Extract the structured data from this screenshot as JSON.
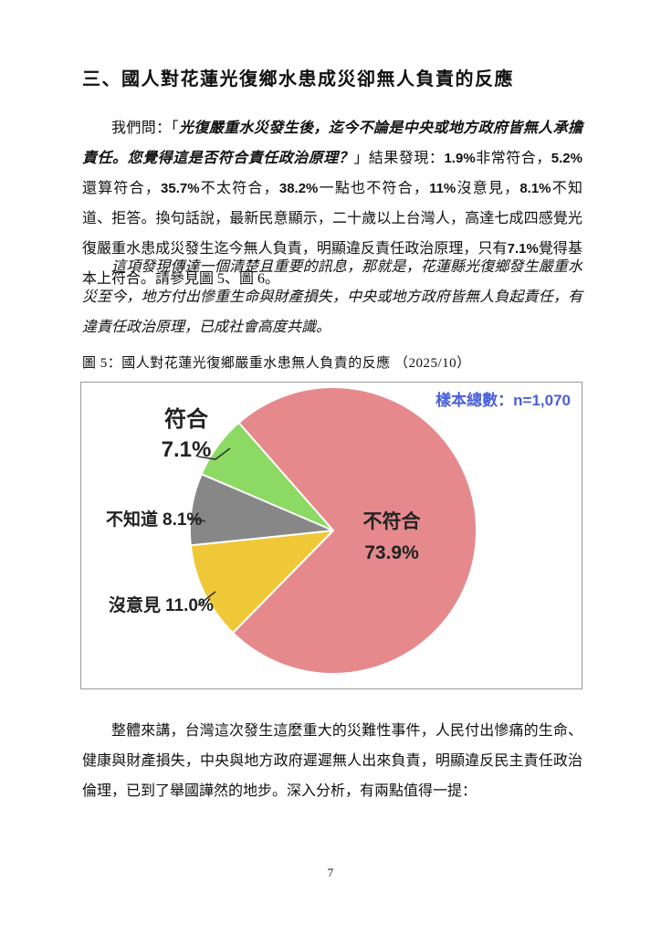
{
  "heading": "三、國人對花蓮光復鄉水患成災卻無人負責的反應",
  "paragraph1": {
    "segments": [
      {
        "style": "plain",
        "text": "我們問：「"
      },
      {
        "style": "quote",
        "text": "光復嚴重水災發生後，迄今不論是中央或地方政府皆無人承擔責任。您覺得這是否符合責任政治原理？"
      },
      {
        "style": "plain",
        "text": "」結果發現："
      },
      {
        "style": "num",
        "text": "1.9%"
      },
      {
        "style": "plain",
        "text": "非常符合，"
      },
      {
        "style": "num",
        "text": "5.2%"
      },
      {
        "style": "plain",
        "text": "還算符合，"
      },
      {
        "style": "num",
        "text": "35.7%"
      },
      {
        "style": "plain",
        "text": "不太符合，"
      },
      {
        "style": "num",
        "text": "38.2%"
      },
      {
        "style": "plain",
        "text": "一點也不符合，"
      },
      {
        "style": "num",
        "text": "11%"
      },
      {
        "style": "plain",
        "text": "沒意見，"
      },
      {
        "style": "num",
        "text": "8.1%"
      },
      {
        "style": "plain",
        "text": "不知道、拒答。換句話說，最新民意顯示，二十歲以上台灣人，高達七成四感覺光復嚴重水患成災發生迄今無人負責，明顯違反責任政治原理，只有"
      },
      {
        "style": "num",
        "text": "7.1%"
      },
      {
        "style": "plain",
        "text": "覺得基本上符合。請參見圖 5、圖 6。"
      }
    ]
  },
  "paragraph2": "這項發現傳達一個清楚且重要的訊息，那就是，花蓮縣光復鄉發生嚴重水災至今，地方付出慘重生命與財產損失，中央或地方政府皆無人負起責任，有違責任政治原理，已成社會高度共識。",
  "figure": {
    "caption": "圖 5：國人對花蓮光復鄉嚴重水患無人負責的反應 （2025/10）",
    "sample_note": "樣本總數：n=1,070",
    "sample_note_color": "#4A5FD8"
  },
  "chart_data": {
    "type": "pie",
    "title": "國人對花蓮光復鄉嚴重水患無人負責的反應（2025/10）",
    "sample_size": "n=1,070",
    "start_angle_deg": 318.4,
    "legend_position": "none",
    "slices": [
      {
        "label": "不符合",
        "value": 73.9,
        "pct_label": "73.9%",
        "color": "#E5898D"
      },
      {
        "label": "沒意見",
        "value": 11.0,
        "pct_label": "11.0%",
        "color": "#EFC837"
      },
      {
        "label": "不知道",
        "value": 8.1,
        "pct_label": "8.1%",
        "color": "#878787"
      },
      {
        "label": "符合",
        "value": 7.1,
        "pct_label": "7.1%",
        "color": "#8CD964"
      }
    ]
  },
  "paragraph3": "整體來講，台灣這次發生這麼重大的災難性事件，人民付出慘痛的生命、健康與財產損失，中央與地方政府遲遲無人出來負責，明顯違反民主責任政治倫理，已到了舉國譁然的地步。深入分析，有兩點值得一提：",
  "page": {
    "number": "7"
  }
}
